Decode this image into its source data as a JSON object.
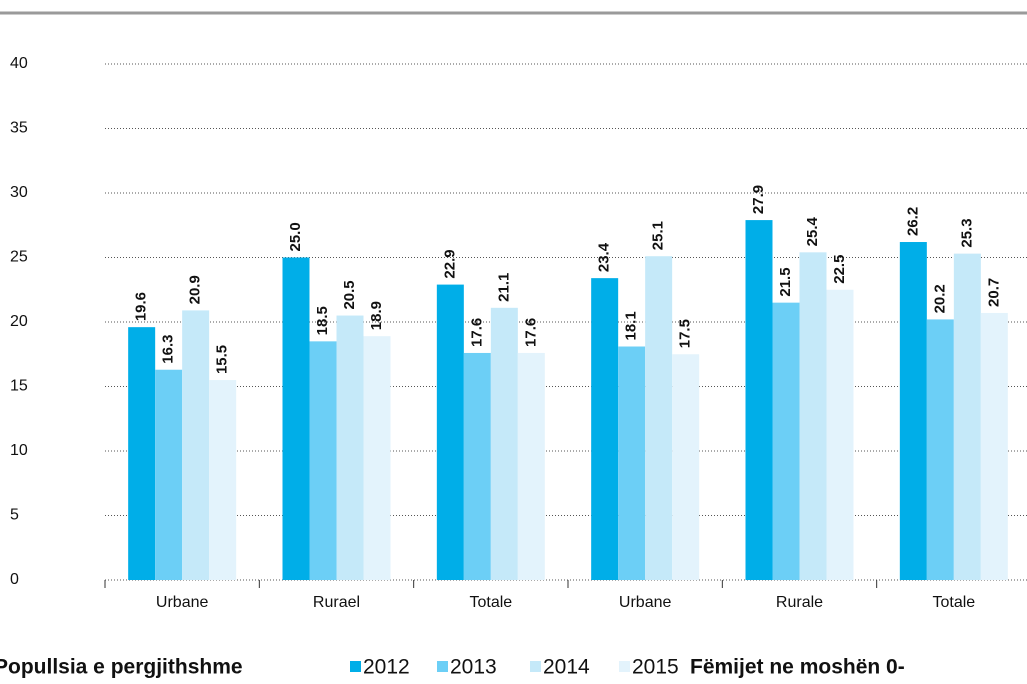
{
  "chart_data": {
    "type": "bar",
    "categories": [
      "Urbane",
      "Rurael",
      "Totale",
      "Urbane",
      "Rurale",
      "Totale"
    ],
    "series": [
      {
        "name": "2012",
        "color": "#00aee8",
        "values": [
          19.6,
          25.0,
          22.9,
          23.4,
          27.9,
          26.2
        ],
        "value_labels": [
          "19.6",
          "25.0",
          "22.9",
          "23.4",
          "27.9",
          "26.2"
        ]
      },
      {
        "name": "2013",
        "color": "#6ccff6",
        "values": [
          16.3,
          18.5,
          17.6,
          18.1,
          21.5,
          20.2
        ],
        "value_labels": [
          "16.3",
          "18.5",
          "17.6",
          "18.1",
          "21.5",
          "20.2"
        ]
      },
      {
        "name": "2014",
        "color": "#c5e9f9",
        "values": [
          20.9,
          20.5,
          21.1,
          25.1,
          25.4,
          25.3
        ],
        "value_labels": [
          "20.9",
          "20.5",
          "21.1",
          "25.1",
          "25.4",
          "25.3"
        ]
      },
      {
        "name": "2015",
        "color": "#e3f3fc",
        "values": [
          15.5,
          18.9,
          17.6,
          17.5,
          22.5,
          20.7
        ],
        "value_labels": [
          "15.5",
          "18.9",
          "17.6",
          "17.5",
          "22.5",
          "20.7"
        ]
      }
    ],
    "legend_groups": [
      "Popullsia e pergjithshme",
      "Fëmijet ne moshën 0-"
    ],
    "ylim": [
      0,
      40
    ],
    "yticks": [
      0,
      5,
      10,
      15,
      20,
      25,
      30,
      35,
      40
    ],
    "grid": true
  }
}
